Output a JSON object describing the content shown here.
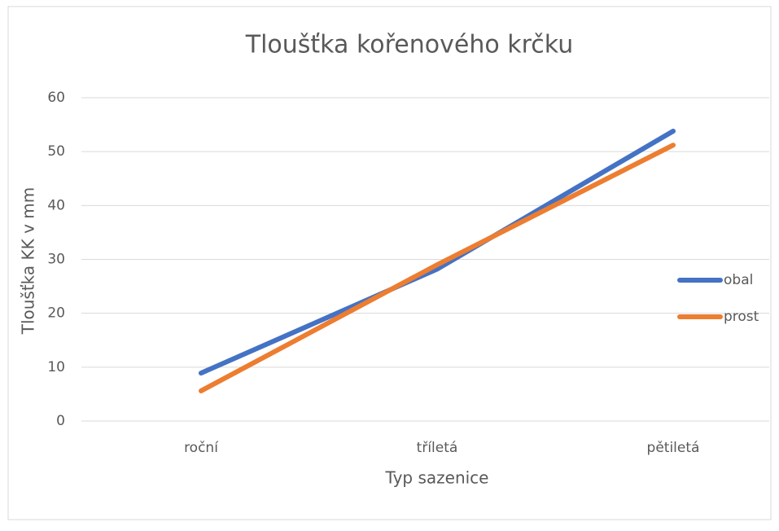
{
  "chart_data": {
    "type": "line",
    "title": "Tloušťka kořenového krčku",
    "x_label": "Typ sazenice",
    "y_label": "Tloušťka KK v mm",
    "categories": [
      "roční",
      "tříletá",
      "pětiletá"
    ],
    "series": [
      {
        "name": "obal",
        "color": "#4472c4",
        "values": [
          8.9,
          28.2,
          53.8
        ]
      },
      {
        "name": "prost",
        "color": "#ed7d31",
        "values": [
          5.6,
          29,
          51.2
        ]
      }
    ],
    "ylim": [
      0,
      60
    ],
    "yticks": [
      0,
      10,
      20,
      30,
      40,
      50,
      60
    ],
    "grid": true,
    "legend": "right"
  }
}
